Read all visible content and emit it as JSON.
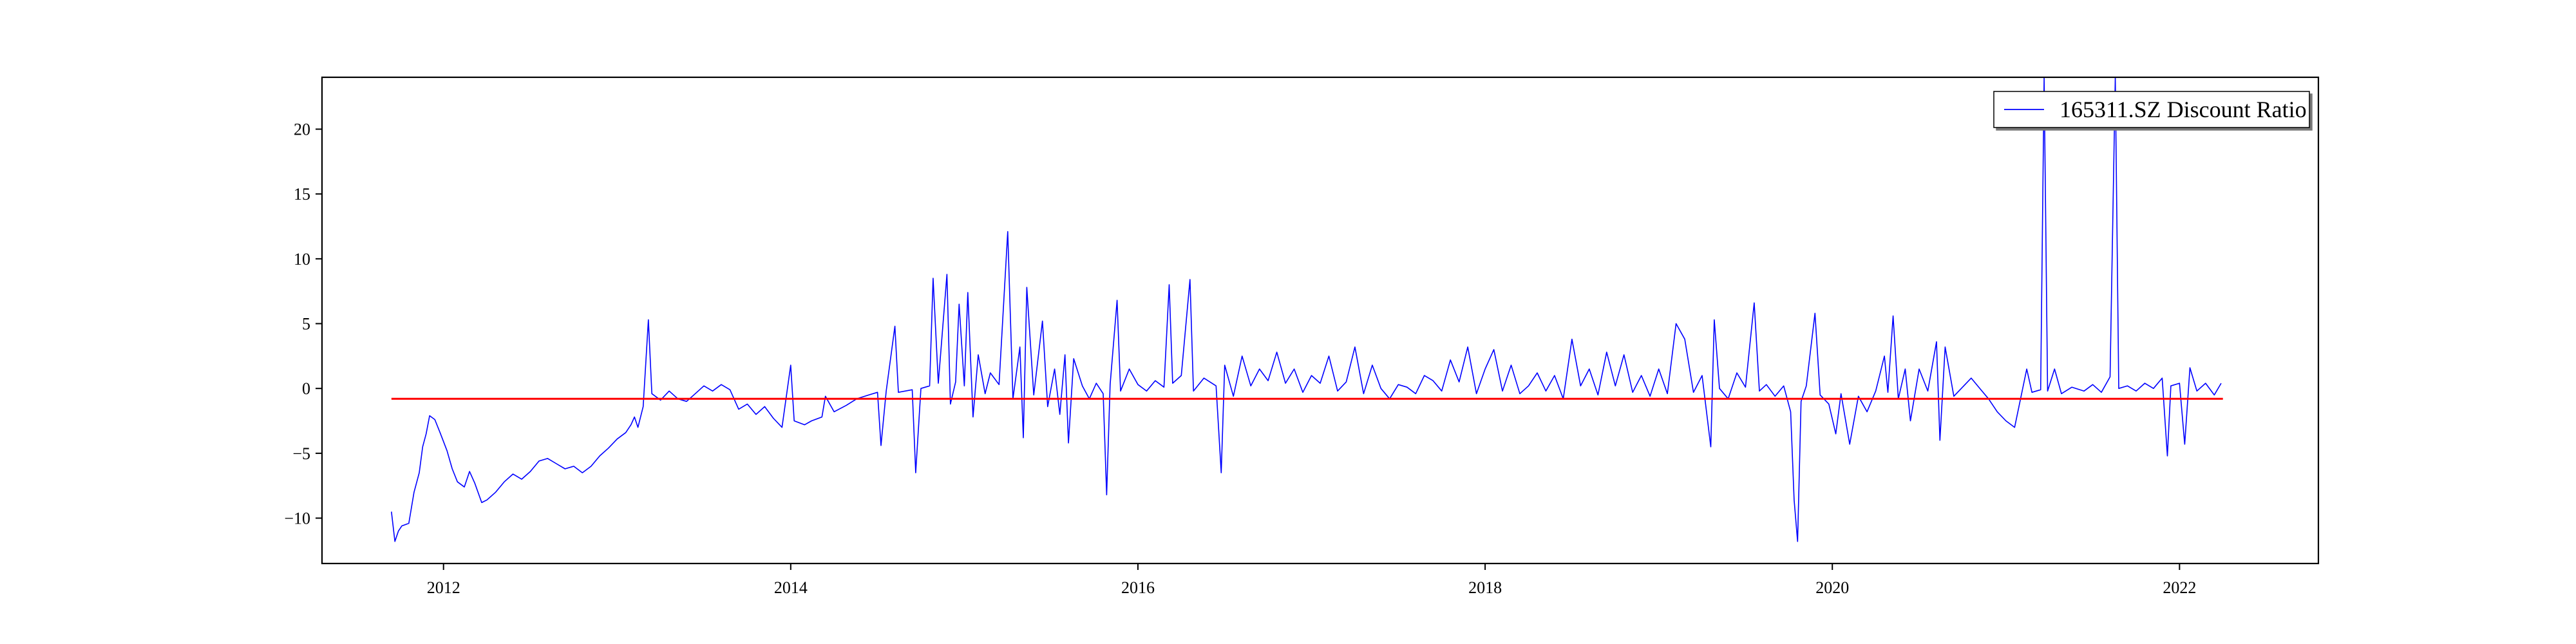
{
  "chart_data": {
    "type": "line",
    "title": "",
    "xlabel": "",
    "ylabel": "",
    "xlim": [
      2011.3,
      2022.8
    ],
    "ylim": [
      -13.5,
      24.0
    ],
    "x_ticks": [
      2012,
      2014,
      2016,
      2018,
      2020,
      2022
    ],
    "y_ticks": [
      -10,
      -5,
      0,
      5,
      10,
      15,
      20
    ],
    "grid": false,
    "legend": {
      "position": "top-right",
      "entries": [
        "165311.SZ Discount Ratio"
      ]
    },
    "reference_line": {
      "y": -0.8,
      "x_range": [
        2011.7,
        2022.25
      ],
      "color": "#ff0000"
    },
    "series": [
      {
        "name": "165311.SZ Discount Ratio",
        "color": "#0000ff",
        "points": [
          [
            2011.7,
            -9.5
          ],
          [
            2011.72,
            -11.8
          ],
          [
            2011.74,
            -11.0
          ],
          [
            2011.76,
            -10.6
          ],
          [
            2011.8,
            -10.4
          ],
          [
            2011.83,
            -8.0
          ],
          [
            2011.86,
            -6.5
          ],
          [
            2011.88,
            -4.5
          ],
          [
            2011.9,
            -3.5
          ],
          [
            2011.92,
            -2.1
          ],
          [
            2011.95,
            -2.4
          ],
          [
            2011.98,
            -3.4
          ],
          [
            2012.02,
            -4.8
          ],
          [
            2012.05,
            -6.2
          ],
          [
            2012.08,
            -7.2
          ],
          [
            2012.12,
            -7.6
          ],
          [
            2012.15,
            -6.4
          ],
          [
            2012.18,
            -7.3
          ],
          [
            2012.22,
            -8.8
          ],
          [
            2012.25,
            -8.6
          ],
          [
            2012.3,
            -8.0
          ],
          [
            2012.35,
            -7.2
          ],
          [
            2012.4,
            -6.6
          ],
          [
            2012.45,
            -7.0
          ],
          [
            2012.5,
            -6.4
          ],
          [
            2012.55,
            -5.6
          ],
          [
            2012.6,
            -5.4
          ],
          [
            2012.65,
            -5.8
          ],
          [
            2012.7,
            -6.2
          ],
          [
            2012.75,
            -6.0
          ],
          [
            2012.8,
            -6.5
          ],
          [
            2012.85,
            -6.0
          ],
          [
            2012.9,
            -5.2
          ],
          [
            2012.95,
            -4.6
          ],
          [
            2013.0,
            -3.9
          ],
          [
            2013.05,
            -3.4
          ],
          [
            2013.08,
            -2.8
          ],
          [
            2013.1,
            -2.2
          ],
          [
            2013.12,
            -3.0
          ],
          [
            2013.15,
            -1.4
          ],
          [
            2013.18,
            5.3
          ],
          [
            2013.2,
            -0.4
          ],
          [
            2013.25,
            -0.9
          ],
          [
            2013.3,
            -0.2
          ],
          [
            2013.35,
            -0.8
          ],
          [
            2013.4,
            -1.0
          ],
          [
            2013.45,
            -0.4
          ],
          [
            2013.5,
            0.2
          ],
          [
            2013.55,
            -0.2
          ],
          [
            2013.6,
            0.3
          ],
          [
            2013.65,
            -0.1
          ],
          [
            2013.7,
            -1.6
          ],
          [
            2013.75,
            -1.2
          ],
          [
            2013.8,
            -2.0
          ],
          [
            2013.85,
            -1.4
          ],
          [
            2013.9,
            -2.3
          ],
          [
            2013.95,
            -3.0
          ],
          [
            2014.0,
            1.8
          ],
          [
            2014.02,
            -2.5
          ],
          [
            2014.08,
            -2.8
          ],
          [
            2014.12,
            -2.5
          ],
          [
            2014.18,
            -2.2
          ],
          [
            2014.2,
            -0.6
          ],
          [
            2014.25,
            -1.8
          ],
          [
            2014.32,
            -1.3
          ],
          [
            2014.38,
            -0.8
          ],
          [
            2014.45,
            -0.5
          ],
          [
            2014.5,
            -0.3
          ],
          [
            2014.52,
            -4.4
          ],
          [
            2014.55,
            -0.2
          ],
          [
            2014.6,
            4.8
          ],
          [
            2014.62,
            -0.3
          ],
          [
            2014.7,
            -0.1
          ],
          [
            2014.72,
            -6.5
          ],
          [
            2014.75,
            0.0
          ],
          [
            2014.8,
            0.2
          ],
          [
            2014.82,
            8.5
          ],
          [
            2014.85,
            0.4
          ],
          [
            2014.9,
            8.8
          ],
          [
            2014.92,
            -1.2
          ],
          [
            2014.95,
            0.5
          ],
          [
            2014.97,
            6.5
          ],
          [
            2015.0,
            0.2
          ],
          [
            2015.02,
            7.4
          ],
          [
            2015.05,
            -2.2
          ],
          [
            2015.08,
            2.6
          ],
          [
            2015.12,
            -0.4
          ],
          [
            2015.15,
            1.2
          ],
          [
            2015.2,
            0.3
          ],
          [
            2015.25,
            12.1
          ],
          [
            2015.28,
            -0.8
          ],
          [
            2015.32,
            3.2
          ],
          [
            2015.34,
            -3.8
          ],
          [
            2015.36,
            7.8
          ],
          [
            2015.4,
            -0.5
          ],
          [
            2015.45,
            5.2
          ],
          [
            2015.48,
            -1.4
          ],
          [
            2015.52,
            1.5
          ],
          [
            2015.55,
            -2.0
          ],
          [
            2015.58,
            2.6
          ],
          [
            2015.6,
            -4.2
          ],
          [
            2015.63,
            2.3
          ],
          [
            2015.68,
            0.2
          ],
          [
            2015.72,
            -0.8
          ],
          [
            2015.76,
            0.4
          ],
          [
            2015.8,
            -0.4
          ],
          [
            2015.82,
            -8.2
          ],
          [
            2015.84,
            0.3
          ],
          [
            2015.88,
            6.8
          ],
          [
            2015.9,
            -0.2
          ],
          [
            2015.95,
            1.5
          ],
          [
            2016.0,
            0.3
          ],
          [
            2016.05,
            -0.2
          ],
          [
            2016.1,
            0.6
          ],
          [
            2016.15,
            0.1
          ],
          [
            2016.18,
            8.0
          ],
          [
            2016.2,
            0.4
          ],
          [
            2016.25,
            1.0
          ],
          [
            2016.3,
            8.4
          ],
          [
            2016.32,
            -0.2
          ],
          [
            2016.38,
            0.8
          ],
          [
            2016.45,
            0.2
          ],
          [
            2016.48,
            -6.5
          ],
          [
            2016.5,
            1.8
          ],
          [
            2016.55,
            -0.6
          ],
          [
            2016.6,
            2.5
          ],
          [
            2016.65,
            0.2
          ],
          [
            2016.7,
            1.5
          ],
          [
            2016.75,
            0.6
          ],
          [
            2016.8,
            2.8
          ],
          [
            2016.85,
            0.4
          ],
          [
            2016.9,
            1.5
          ],
          [
            2016.95,
            -0.3
          ],
          [
            2017.0,
            1.0
          ],
          [
            2017.05,
            0.4
          ],
          [
            2017.1,
            2.5
          ],
          [
            2017.15,
            -0.2
          ],
          [
            2017.2,
            0.5
          ],
          [
            2017.25,
            3.2
          ],
          [
            2017.3,
            -0.4
          ],
          [
            2017.35,
            1.8
          ],
          [
            2017.4,
            0.0
          ],
          [
            2017.45,
            -0.8
          ],
          [
            2017.5,
            0.3
          ],
          [
            2017.55,
            0.1
          ],
          [
            2017.6,
            -0.4
          ],
          [
            2017.65,
            1.0
          ],
          [
            2017.7,
            0.6
          ],
          [
            2017.75,
            -0.2
          ],
          [
            2017.8,
            2.2
          ],
          [
            2017.85,
            0.5
          ],
          [
            2017.9,
            3.2
          ],
          [
            2017.95,
            -0.4
          ],
          [
            2018.0,
            1.5
          ],
          [
            2018.05,
            3.0
          ],
          [
            2018.1,
            -0.2
          ],
          [
            2018.15,
            1.8
          ],
          [
            2018.2,
            -0.4
          ],
          [
            2018.25,
            0.2
          ],
          [
            2018.3,
            1.2
          ],
          [
            2018.35,
            -0.2
          ],
          [
            2018.4,
            1.0
          ],
          [
            2018.45,
            -0.8
          ],
          [
            2018.5,
            3.8
          ],
          [
            2018.55,
            0.2
          ],
          [
            2018.6,
            1.5
          ],
          [
            2018.65,
            -0.5
          ],
          [
            2018.7,
            2.8
          ],
          [
            2018.75,
            0.2
          ],
          [
            2018.8,
            2.6
          ],
          [
            2018.85,
            -0.3
          ],
          [
            2018.9,
            1.0
          ],
          [
            2018.95,
            -0.6
          ],
          [
            2019.0,
            1.5
          ],
          [
            2019.05,
            -0.4
          ],
          [
            2019.1,
            5.0
          ],
          [
            2019.15,
            3.8
          ],
          [
            2019.2,
            -0.3
          ],
          [
            2019.25,
            1.0
          ],
          [
            2019.3,
            -4.5
          ],
          [
            2019.32,
            5.3
          ],
          [
            2019.35,
            0.0
          ],
          [
            2019.4,
            -0.8
          ],
          [
            2019.45,
            1.2
          ],
          [
            2019.5,
            0.1
          ],
          [
            2019.55,
            6.6
          ],
          [
            2019.58,
            -0.2
          ],
          [
            2019.62,
            0.3
          ],
          [
            2019.67,
            -0.6
          ],
          [
            2019.72,
            0.2
          ],
          [
            2019.76,
            -1.8
          ],
          [
            2019.78,
            -8.6
          ],
          [
            2019.8,
            -11.8
          ],
          [
            2019.82,
            -1.0
          ],
          [
            2019.85,
            0.2
          ],
          [
            2019.9,
            5.8
          ],
          [
            2019.93,
            -0.5
          ],
          [
            2019.98,
            -1.2
          ],
          [
            2020.02,
            -3.5
          ],
          [
            2020.05,
            -0.4
          ],
          [
            2020.1,
            -4.3
          ],
          [
            2020.15,
            -0.6
          ],
          [
            2020.2,
            -1.8
          ],
          [
            2020.25,
            -0.2
          ],
          [
            2020.3,
            2.5
          ],
          [
            2020.32,
            -0.3
          ],
          [
            2020.35,
            5.6
          ],
          [
            2020.38,
            -0.8
          ],
          [
            2020.42,
            1.5
          ],
          [
            2020.45,
            -2.5
          ],
          [
            2020.5,
            1.5
          ],
          [
            2020.55,
            -0.2
          ],
          [
            2020.6,
            3.6
          ],
          [
            2020.62,
            -4.0
          ],
          [
            2020.65,
            3.2
          ],
          [
            2020.7,
            -0.6
          ],
          [
            2020.75,
            0.1
          ],
          [
            2020.8,
            0.8
          ],
          [
            2020.85,
            0.0
          ],
          [
            2020.9,
            -0.8
          ],
          [
            2020.95,
            -1.8
          ],
          [
            2021.0,
            -2.5
          ],
          [
            2021.05,
            -3.0
          ],
          [
            2021.12,
            1.5
          ],
          [
            2021.15,
            -0.3
          ],
          [
            2021.2,
            -0.1
          ],
          [
            2021.22,
            24.0
          ],
          [
            2021.24,
            -0.2
          ],
          [
            2021.28,
            1.5
          ],
          [
            2021.32,
            -0.4
          ],
          [
            2021.38,
            0.1
          ],
          [
            2021.45,
            -0.2
          ],
          [
            2021.5,
            0.3
          ],
          [
            2021.55,
            -0.3
          ],
          [
            2021.6,
            0.9
          ],
          [
            2021.63,
            24.0
          ],
          [
            2021.65,
            0.0
          ],
          [
            2021.7,
            0.2
          ],
          [
            2021.75,
            -0.2
          ],
          [
            2021.8,
            0.4
          ],
          [
            2021.85,
            0.0
          ],
          [
            2021.9,
            0.8
          ],
          [
            2021.93,
            -5.2
          ],
          [
            2021.95,
            0.2
          ],
          [
            2022.0,
            0.4
          ],
          [
            2022.03,
            -4.3
          ],
          [
            2022.06,
            1.6
          ],
          [
            2022.1,
            -0.2
          ],
          [
            2022.15,
            0.4
          ],
          [
            2022.2,
            -0.5
          ],
          [
            2022.24,
            0.4
          ]
        ]
      }
    ]
  }
}
